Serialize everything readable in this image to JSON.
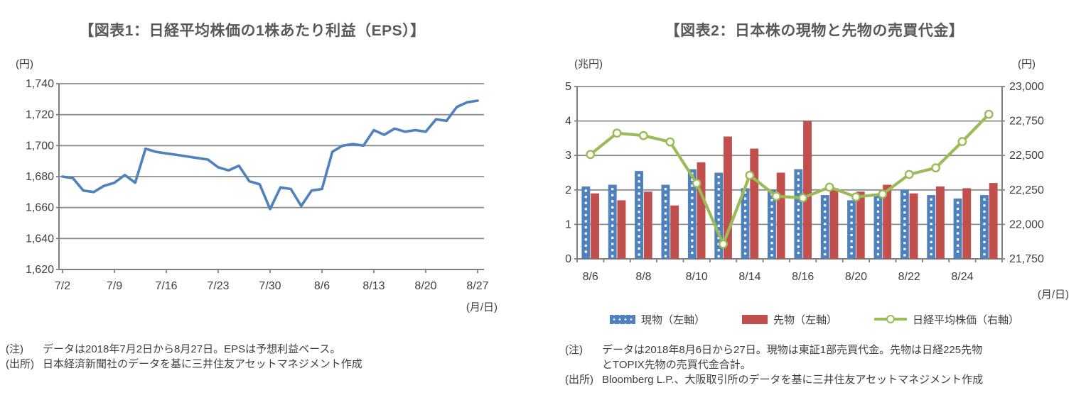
{
  "chart_data": [
    {
      "id": "eps",
      "type": "line",
      "title": "【図表1：日経平均株価の1株あたり利益（EPS）】",
      "y_axis_unit": "(円)",
      "x_axis_unit": "(月/日)",
      "ylim": [
        1620,
        1740
      ],
      "grid": true,
      "legend_position": "none",
      "ytick_labels": [
        "1,740",
        "1,720",
        "1,700",
        "1,680",
        "1,660",
        "1,640",
        "1,620"
      ],
      "yticks": [
        1740,
        1720,
        1700,
        1680,
        1660,
        1640,
        1620
      ],
      "xtick_labels": [
        "7/2",
        "7/9",
        "7/16",
        "7/23",
        "7/30",
        "8/6",
        "8/13",
        "8/20",
        "8/27"
      ],
      "series": [
        {
          "name": "日経平均株価の1株あたり利益（EPS）",
          "color": "#4f81bd",
          "x": [
            "7/2",
            "7/3",
            "7/4",
            "7/5",
            "7/6",
            "7/9",
            "7/10",
            "7/11",
            "7/12",
            "7/13",
            "7/16",
            "7/17",
            "7/18",
            "7/19",
            "7/20",
            "7/23",
            "7/24",
            "7/25",
            "7/26",
            "7/27",
            "7/30",
            "7/31",
            "8/1",
            "8/2",
            "8/3",
            "8/6",
            "8/7",
            "8/8",
            "8/9",
            "8/10",
            "8/13",
            "8/14",
            "8/15",
            "8/16",
            "8/17",
            "8/20",
            "8/21",
            "8/22",
            "8/23",
            "8/24",
            "8/27"
          ],
          "values": [
            1680,
            1679,
            1671,
            1670,
            1674,
            1676,
            1681,
            1676,
            1698,
            1696,
            1695,
            1694,
            1693,
            1692,
            1691,
            1686,
            1684,
            1687,
            1677,
            1675,
            1659,
            1673,
            1672,
            1661,
            1671,
            1672,
            1696,
            1700,
            1701,
            1700,
            1710,
            1707,
            1711,
            1709,
            1710,
            1709,
            1717,
            1716,
            1725,
            1728,
            1729
          ]
        }
      ],
      "note_label": "(注)",
      "note_lines": [
        "データは2018年7月2日から8月27日。EPSは予想利益ベース。"
      ],
      "source_label": "(出所)",
      "source_lines": [
        "日本経済新聞社のデータを基に三井住友アセットマネジメント作成"
      ]
    },
    {
      "id": "volume",
      "type": "bar+line",
      "title": "【図表2：日本株の現物と先物の売買代金】",
      "left_axis_unit": "(兆円)",
      "right_axis_unit": "(円)",
      "x_axis_unit": "(月/日)",
      "ylim_left": [
        0,
        5
      ],
      "ytick_labels_left": [
        "5",
        "4",
        "3",
        "2",
        "1",
        "0"
      ],
      "yticks_left": [
        5,
        4,
        3,
        2,
        1,
        0
      ],
      "ylim_right": [
        21750,
        23000
      ],
      "ytick_labels_right": [
        "23,000",
        "22,750",
        "22,500",
        "22,250",
        "22,000",
        "21,750"
      ],
      "yticks_right": [
        23000,
        22750,
        22500,
        22250,
        22000,
        21750
      ],
      "grid": true,
      "legend_position": "bottom",
      "categories": [
        "8/6",
        "8/7",
        "8/8",
        "8/9",
        "8/10",
        "8/13",
        "8/14",
        "8/15",
        "8/16",
        "8/17",
        "8/20",
        "8/21",
        "8/22",
        "8/23",
        "8/24",
        "8/27"
      ],
      "xtick_labels": [
        "8/6",
        "8/8",
        "8/10",
        "8/14",
        "8/16",
        "8/20",
        "8/22",
        "8/24"
      ],
      "series": [
        {
          "name": "現物（左軸）",
          "type": "bar",
          "axis": "left",
          "color": "#4f81bd",
          "fill_pattern": "white-dots",
          "values": [
            2.1,
            2.15,
            2.55,
            2.15,
            2.6,
            2.5,
            2.05,
            2.0,
            2.6,
            1.85,
            1.7,
            1.85,
            2.0,
            1.85,
            1.75,
            1.85
          ]
        },
        {
          "name": "先物（左軸）",
          "type": "bar",
          "axis": "left",
          "color": "#c0504d",
          "values": [
            1.9,
            1.7,
            1.95,
            1.55,
            2.8,
            3.55,
            3.2,
            2.5,
            4.0,
            2.05,
            1.95,
            2.15,
            1.9,
            2.1,
            2.05,
            2.2
          ]
        },
        {
          "name": "日経平均株価（右軸）",
          "type": "line",
          "axis": "right",
          "color": "#9bbb59",
          "marker": "circle",
          "values": [
            22507,
            22662,
            22644,
            22598,
            22298,
            21857,
            22356,
            22204,
            22192,
            22270,
            22199,
            22219,
            22362,
            22410,
            22601,
            22799
          ]
        }
      ],
      "note_label": "(注)",
      "note_lines": [
        "データは2018年8月6日から27日。現物は東証1部売買代金。先物は日経225先物",
        "とTOPIX先物の売買代金合計。"
      ],
      "source_label": "(出所)",
      "source_lines": [
        "Bloomberg L.P.、大阪取引所のデータを基に三井住友アセットマネジメント作成"
      ]
    }
  ],
  "style": {
    "grid_color": "#8c8c8c",
    "axis_color": "#808080",
    "tick_text_color": "#3f3f3f",
    "title_color": "#595959"
  }
}
